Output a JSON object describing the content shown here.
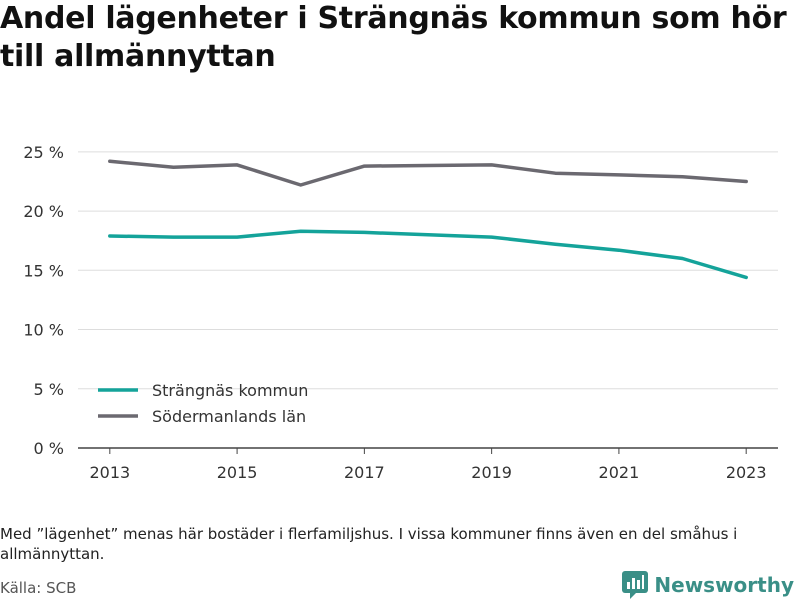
{
  "title": "Andel lägenheter i Strängnäs kommun som hör till allmännyttan",
  "note": "Med ”lägenhet” menas här bostäder i flerfamiljshus. I vissa kommuner finns även en del småhus i allmännyttan.",
  "source": "Källa: SCB",
  "brand": {
    "name": "Newsworthy",
    "icon": "newsworthy-logo-icon",
    "color": "#3a8f87"
  },
  "chart_data": {
    "type": "line",
    "x": [
      2013,
      2014,
      2015,
      2016,
      2017,
      2018,
      2019,
      2020,
      2021,
      2022,
      2023
    ],
    "x_tick_labels": [
      "2013",
      "2015",
      "2017",
      "2019",
      "2021",
      "2023"
    ],
    "y_ticks": [
      0,
      5,
      10,
      15,
      20,
      25
    ],
    "y_tick_suffix": " %",
    "ylim": [
      0,
      26
    ],
    "xlim": [
      2012.5,
      2023.5
    ],
    "grid": true,
    "legend_position": "bottom-left",
    "series": [
      {
        "name": "Strängnäs kommun",
        "color": "#14a39a",
        "values": [
          17.9,
          17.8,
          17.8,
          18.3,
          18.2,
          18.0,
          17.8,
          17.2,
          16.7,
          16.0,
          14.4
        ]
      },
      {
        "name": "Södermanlands län",
        "color": "#6b6970",
        "values": [
          24.2,
          23.7,
          23.9,
          22.2,
          23.8,
          23.85,
          23.9,
          23.2,
          23.05,
          22.9,
          22.5
        ]
      }
    ]
  }
}
